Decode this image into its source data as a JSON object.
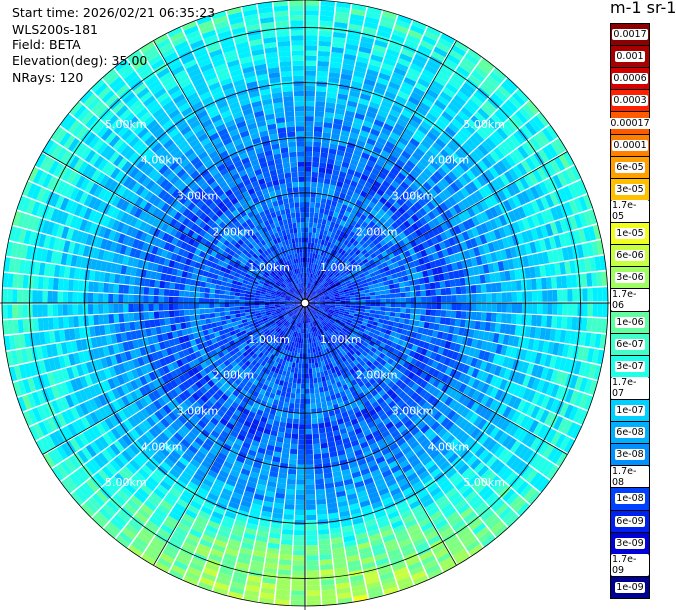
{
  "info": {
    "start_time": "Start time: 2026/02/21 06:35:23",
    "instrument": "WLS200s-181",
    "field": "Field: BETA",
    "elevation": "Elevation(deg): 35.00",
    "nrays": "NRays: 120"
  },
  "colorbar": {
    "title": "m-1 sr-1",
    "labels": [
      "0.0017",
      "0.001",
      "0.0006",
      "0.0003",
      "0.00017",
      "0.0001",
      "6e-05",
      "3e-05",
      "1.7e-05",
      "1e-05",
      "6e-06",
      "3e-06",
      "1.7e-06",
      "1e-06",
      "6e-07",
      "3e-07",
      "1.7e-07",
      "1e-07",
      "6e-08",
      "3e-08",
      "1.7e-08",
      "1e-08",
      "6e-09",
      "3e-09",
      "1.7e-09",
      "1e-09"
    ],
    "colors": [
      "#8b0000",
      "#a80000",
      "#d40000",
      "#ff2000",
      "#ff5a00",
      "#ff8000",
      "#ffa000",
      "#ffc000",
      "#ffe000",
      "#f0ff20",
      "#c8ff40",
      "#a0ff60",
      "#80ff80",
      "#60ffa0",
      "#40ffc8",
      "#20ffe8",
      "#00f0ff",
      "#00d0ff",
      "#00b0ff",
      "#0090ff",
      "#0060ff",
      "#0040ff",
      "#0020f0",
      "#0000d8",
      "#0000b0",
      "#000090"
    ]
  },
  "chart_data": {
    "type": "polar_ppi",
    "nrays": 120,
    "elevation_deg": 35.0,
    "range_rings_km": [
      1,
      2,
      3,
      4,
      5
    ],
    "ring_labels": [
      "1.00km",
      "2.00km",
      "3.00km",
      "4.00km",
      "5.00km"
    ],
    "max_range_km": 5.5,
    "field": "BETA",
    "units": "m-1 sr-1",
    "scale": "log",
    "vmin": 1e-09,
    "vmax": 0.0017
  }
}
